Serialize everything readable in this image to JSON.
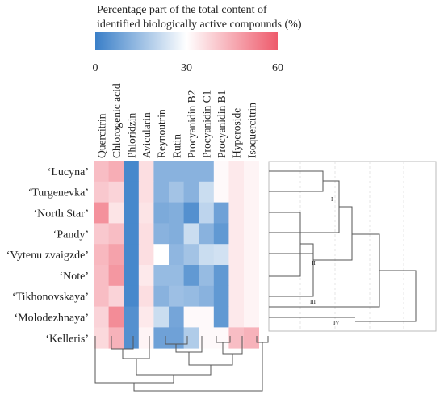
{
  "chart_data": {
    "type": "heatmap",
    "colorbar": {
      "title_line1": "Percentage part of the total content of",
      "title_line2": "identified biologically active compounds (%)",
      "ticks": [
        "0",
        "30",
        "60"
      ],
      "range": [
        0,
        60
      ],
      "colors": {
        "low": "#3a7fc8",
        "mid": "#ffffff",
        "high": "#ee5a6b"
      }
    },
    "columns": [
      "Quercitrin",
      "Chlorogenic acid",
      "Phloridzin",
      "Avicularin",
      "Reynoutrin",
      "Rutin",
      "Procyanidin B2",
      "Procyanidin C1",
      "Procyanidin B1",
      "Hyperoside",
      "Isoquercitrin"
    ],
    "rows": [
      "‘Lucyna’",
      "‘Turgenevka’",
      "‘North Star’",
      "‘Pandy’",
      "‘Vytenu zvaigzde’",
      "‘Note’",
      "‘Tikhonovskaya’",
      "‘Molodezhnaya’",
      "‘Kelleris’"
    ],
    "values": [
      [
        42,
        45,
        2,
        36,
        12,
        12,
        12,
        12,
        31,
        34,
        32
      ],
      [
        40,
        38,
        2,
        36,
        12,
        16,
        12,
        22,
        31,
        34,
        32
      ],
      [
        50,
        35,
        2,
        35,
        10,
        11,
        4,
        20,
        8,
        34,
        32
      ],
      [
        40,
        42,
        2,
        36,
        12,
        11,
        22,
        12,
        6,
        34,
        32
      ],
      [
        43,
        47,
        2,
        36,
        30,
        13,
        16,
        22,
        23,
        34,
        32
      ],
      [
        42,
        49,
        2,
        34,
        14,
        14,
        6,
        14,
        6,
        34,
        32
      ],
      [
        42,
        38,
        2,
        36,
        12,
        15,
        14,
        12,
        6,
        34,
        32
      ],
      [
        38,
        51,
        4,
        34,
        22,
        9,
        31,
        31,
        6,
        34,
        32
      ],
      [
        37,
        44,
        4,
        32,
        8,
        8,
        18,
        31,
        31,
        42,
        44
      ]
    ],
    "row_cluster_labels": [
      "I",
      "II",
      "III",
      "IV"
    ]
  }
}
